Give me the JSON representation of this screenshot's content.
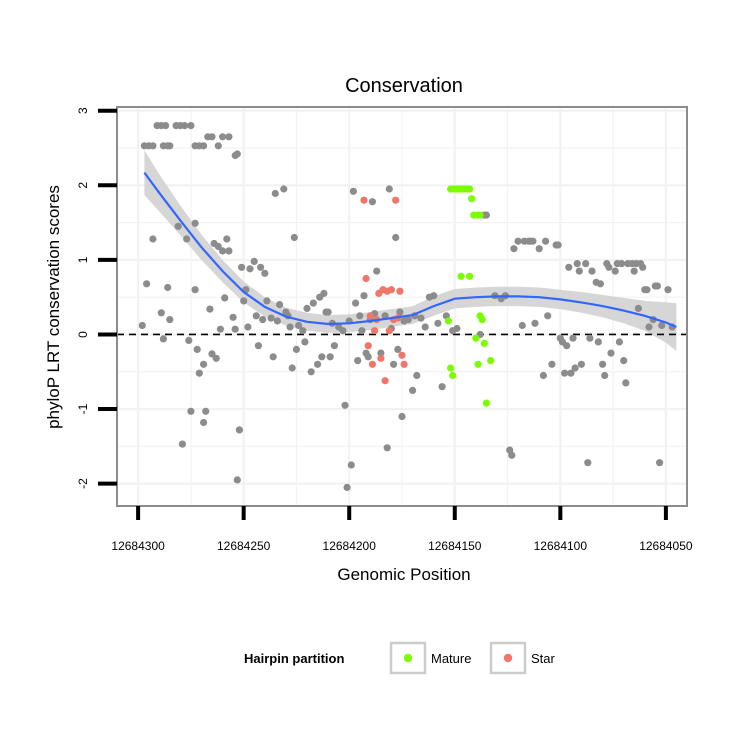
{
  "chart_data": {
    "type": "scatter",
    "title": "Conservation",
    "xlabel": "Genomic Position",
    "ylabel": "phyloP LRT conservation scores",
    "x_reversed": true,
    "xlim": [
      12684310,
      12684040
    ],
    "ylim": [
      -2.3,
      3.05
    ],
    "x_ticks": [
      12684300,
      12684250,
      12684200,
      12684150,
      12684100,
      12684050
    ],
    "x_tick_labels": [
      "12684300",
      "12684250",
      "12684200",
      "12684150",
      "12684100",
      "12684050"
    ],
    "y_ticks": [
      -2,
      -1,
      0,
      1,
      2,
      3
    ],
    "y_tick_labels": [
      "-2",
      "-1",
      "0",
      "1",
      "2",
      "3"
    ],
    "reference_line": {
      "y": 0,
      "style": "dashed"
    },
    "colors": {
      "other": "#8c8c8c",
      "Mature": "#7cfc00",
      "Star": "#f0766a",
      "smooth": "#3366ff",
      "ribbon": "#d6d6d6",
      "grid": "#f2f2f2",
      "panel_border": "#8c8c8c"
    },
    "legend": {
      "title": "Hairpin partition",
      "position": "bottom",
      "entries": [
        {
          "label": "Mature",
          "color": "#7cfc00"
        },
        {
          "label": "Star",
          "color": "#f0766a"
        }
      ]
    },
    "series": [
      {
        "name": "Other",
        "points": [
          [
            12684297,
            2.53
          ],
          [
            12684295,
            2.53
          ],
          [
            12684293,
            2.53
          ],
          [
            12684291,
            2.8
          ],
          [
            12684289,
            2.8
          ],
          [
            12684288,
            2.53
          ],
          [
            12684287,
            2.8
          ],
          [
            12684286,
            2.53
          ],
          [
            12684285,
            2.53
          ],
          [
            12684282,
            2.8
          ],
          [
            12684280,
            2.8
          ],
          [
            12684278,
            2.8
          ],
          [
            12684275,
            2.8
          ],
          [
            12684273,
            2.53
          ],
          [
            12684271,
            2.53
          ],
          [
            12684269,
            2.53
          ],
          [
            12684267,
            2.65
          ],
          [
            12684265,
            2.65
          ],
          [
            12684262,
            2.53
          ],
          [
            12684260,
            2.65
          ],
          [
            12684257,
            2.65
          ],
          [
            12684254,
            2.4
          ],
          [
            12684253,
            2.42
          ],
          [
            12684298,
            0.12
          ],
          [
            12684296,
            0.68
          ],
          [
            12684293,
            1.28
          ],
          [
            12684289,
            0.29
          ],
          [
            12684288,
            -0.06
          ],
          [
            12684286,
            0.63
          ],
          [
            12684285,
            0.2
          ],
          [
            12684281,
            1.45
          ],
          [
            12684279,
            -1.47
          ],
          [
            12684277,
            1.28
          ],
          [
            12684276,
            -0.08
          ],
          [
            12684275,
            -1.03
          ],
          [
            12684273,
            1.49
          ],
          [
            12684273,
            0.6
          ],
          [
            12684272,
            -0.2
          ],
          [
            12684271,
            -0.52
          ],
          [
            12684269,
            -0.4
          ],
          [
            12684269,
            -1.18
          ],
          [
            12684268,
            -1.03
          ],
          [
            12684266,
            0.34
          ],
          [
            12684265,
            -0.26
          ],
          [
            12684264,
            1.22
          ],
          [
            12684263,
            -0.32
          ],
          [
            12684262,
            1.18
          ],
          [
            12684261,
            0.07
          ],
          [
            12684260,
            1.12
          ],
          [
            12684259,
            0.49
          ],
          [
            12684258,
            1.28
          ],
          [
            12684257,
            1.12
          ],
          [
            12684255,
            0.23
          ],
          [
            12684254,
            0.07
          ],
          [
            12684253,
            -1.95
          ],
          [
            12684252,
            -1.28
          ],
          [
            12684251,
            0.9
          ],
          [
            12684250,
            0.45
          ],
          [
            12684249,
            0.6
          ],
          [
            12684248,
            0.1
          ],
          [
            12684247,
            0.88
          ],
          [
            12684245,
            0.98
          ],
          [
            12684244,
            0.25
          ],
          [
            12684243,
            -0.15
          ],
          [
            12684242,
            0.9
          ],
          [
            12684241,
            0.2
          ],
          [
            12684240,
            0.82
          ],
          [
            12684239,
            0.45
          ],
          [
            12684237,
            0.22
          ],
          [
            12684236,
            -0.3
          ],
          [
            12684235,
            1.89
          ],
          [
            12684234,
            0.18
          ],
          [
            12684233,
            0.4
          ],
          [
            12684231,
            1.95
          ],
          [
            12684230,
            0.3
          ],
          [
            12684229,
            0.25
          ],
          [
            12684228,
            0.1
          ],
          [
            12684227,
            -0.45
          ],
          [
            12684226,
            1.3
          ],
          [
            12684225,
            -0.2
          ],
          [
            12684224,
            0.12
          ],
          [
            12684222,
            0.05
          ],
          [
            12684221,
            -0.1
          ],
          [
            12684220,
            0.35
          ],
          [
            12684218,
            -0.5
          ],
          [
            12684217,
            0.42
          ],
          [
            12684215,
            -0.4
          ],
          [
            12684214,
            0.5
          ],
          [
            12684213,
            -0.3
          ],
          [
            12684212,
            0.55
          ],
          [
            12684211,
            0.3
          ],
          [
            12684210,
            0.3
          ],
          [
            12684209,
            -0.3
          ],
          [
            12684208,
            0.15
          ],
          [
            12684207,
            -0.15
          ],
          [
            12684205,
            0.1
          ],
          [
            12684203,
            0.05
          ],
          [
            12684202,
            -0.95
          ],
          [
            12684201,
            -2.05
          ],
          [
            12684200,
            0.18
          ],
          [
            12684199,
            -1.75
          ],
          [
            12684198,
            1.92
          ],
          [
            12684197,
            0.42
          ],
          [
            12684196,
            -0.35
          ],
          [
            12684195,
            0.25
          ],
          [
            12684194,
            0.05
          ],
          [
            12684193,
            0.52
          ],
          [
            12684192,
            -0.25
          ],
          [
            12684191,
            -0.3
          ],
          [
            12684190,
            0.2
          ],
          [
            12684189,
            1.78
          ],
          [
            12684188,
            0.28
          ],
          [
            12684187,
            0.85
          ],
          [
            12684185,
            -0.25
          ],
          [
            12684183,
            0.25
          ],
          [
            12684182,
            -1.52
          ],
          [
            12684181,
            1.95
          ],
          [
            12684180,
            0.08
          ],
          [
            12684179,
            -0.4
          ],
          [
            12684178,
            1.3
          ],
          [
            12684177,
            -0.2
          ],
          [
            12684176,
            0.3
          ],
          [
            12684175,
            -1.1
          ],
          [
            12684174,
            0.18
          ],
          [
            12684172,
            0.2
          ],
          [
            12684170,
            -0.75
          ],
          [
            12684169,
            0.25
          ],
          [
            12684168,
            -0.55
          ],
          [
            12684166,
            0.22
          ],
          [
            12684164,
            0.1
          ],
          [
            12684162,
            0.5
          ],
          [
            12684160,
            0.52
          ],
          [
            12684158,
            0.15
          ],
          [
            12684156,
            -0.7
          ],
          [
            12684154,
            0.25
          ],
          [
            12684151,
            0.05
          ],
          [
            12684149,
            0.08
          ],
          [
            12684138,
            0.0
          ],
          [
            12684136,
            1.6
          ],
          [
            12684135,
            1.6
          ],
          [
            12684131,
            0.52
          ],
          [
            12684128,
            0.48
          ],
          [
            12684126,
            0.52
          ],
          [
            12684124,
            -1.55
          ],
          [
            12684123,
            -1.62
          ],
          [
            12684122,
            1.15
          ],
          [
            12684120,
            1.25
          ],
          [
            12684118,
            0.12
          ],
          [
            12684117,
            1.25
          ],
          [
            12684115,
            1.25
          ],
          [
            12684114,
            1.25
          ],
          [
            12684113,
            1.25
          ],
          [
            12684112,
            0.15
          ],
          [
            12684110,
            1.15
          ],
          [
            12684108,
            -0.55
          ],
          [
            12684107,
            1.25
          ],
          [
            12684106,
            0.25
          ],
          [
            12684104,
            -0.4
          ],
          [
            12684102,
            1.2
          ],
          [
            12684101,
            1.2
          ],
          [
            12684100,
            -0.05
          ],
          [
            12684099,
            -0.1
          ],
          [
            12684098,
            -0.52
          ],
          [
            12684097,
            -0.15
          ],
          [
            12684096,
            0.9
          ],
          [
            12684095,
            -0.52
          ],
          [
            12684094,
            -0.05
          ],
          [
            12684093,
            -0.45
          ],
          [
            12684092,
            0.95
          ],
          [
            12684091,
            0.85
          ],
          [
            12684090,
            -0.4
          ],
          [
            12684088,
            0.95
          ],
          [
            12684087,
            -1.72
          ],
          [
            12684086,
            -0.05
          ],
          [
            12684085,
            0.85
          ],
          [
            12684083,
            0.7
          ],
          [
            12684082,
            -0.1
          ],
          [
            12684081,
            0.68
          ],
          [
            12684080,
            -0.4
          ],
          [
            12684079,
            -0.55
          ],
          [
            12684078,
            0.95
          ],
          [
            12684077,
            0.9
          ],
          [
            12684076,
            -0.25
          ],
          [
            12684074,
            0.85
          ],
          [
            12684073,
            0.95
          ],
          [
            12684072,
            -0.1
          ],
          [
            12684071,
            0.95
          ],
          [
            12684070,
            -0.35
          ],
          [
            12684069,
            -0.65
          ],
          [
            12684068,
            0.95
          ],
          [
            12684066,
            0.95
          ],
          [
            12684065,
            0.85
          ],
          [
            12684064,
            0.95
          ],
          [
            12684063,
            0.35
          ],
          [
            12684062,
            0.95
          ],
          [
            12684061,
            0.9
          ],
          [
            12684060,
            0.6
          ],
          [
            12684059,
            0.6
          ],
          [
            12684058,
            0.1
          ],
          [
            12684056,
            0.2
          ],
          [
            12684055,
            0.65
          ],
          [
            12684054,
            0.65
          ],
          [
            12684053,
            -1.72
          ],
          [
            12684052,
            0.12
          ],
          [
            12684049,
            0.6
          ],
          [
            12684047,
            0.1
          ]
        ]
      },
      {
        "name": "Star",
        "points": [
          [
            12684193,
            1.8
          ],
          [
            12684192,
            0.75
          ],
          [
            12684191,
            -0.15
          ],
          [
            12684190,
            0.25
          ],
          [
            12684189,
            -0.4
          ],
          [
            12684188,
            0.05
          ],
          [
            12684187,
            0.2
          ],
          [
            12684186,
            0.55
          ],
          [
            12684185,
            -0.32
          ],
          [
            12684184,
            0.6
          ],
          [
            12684183,
            -0.62
          ],
          [
            12684182,
            0.58
          ],
          [
            12684181,
            0.05
          ],
          [
            12684180,
            0.6
          ],
          [
            12684179,
            0.2
          ],
          [
            12684178,
            1.8
          ],
          [
            12684177,
            0.22
          ],
          [
            12684176,
            0.58
          ],
          [
            12684175,
            -0.28
          ],
          [
            12684174,
            -0.4
          ]
        ]
      },
      {
        "name": "Mature",
        "points": [
          [
            12684152,
            1.95
          ],
          [
            12684151,
            1.95
          ],
          [
            12684150,
            1.95
          ],
          [
            12684149,
            1.95
          ],
          [
            12684148,
            1.95
          ],
          [
            12684147,
            1.95
          ],
          [
            12684146,
            1.95
          ],
          [
            12684145,
            1.95
          ],
          [
            12684144,
            1.95
          ],
          [
            12684143,
            1.95
          ],
          [
            12684142,
            1.82
          ],
          [
            12684141,
            1.6
          ],
          [
            12684139,
            1.6
          ],
          [
            12684138,
            1.6
          ],
          [
            12684153,
            0.18
          ],
          [
            12684152,
            -0.45
          ],
          [
            12684151,
            -0.55
          ],
          [
            12684147,
            0.78
          ],
          [
            12684143,
            0.78
          ],
          [
            12684140,
            -0.05
          ],
          [
            12684139,
            -0.4
          ],
          [
            12684138,
            0.25
          ],
          [
            12684137,
            0.2
          ],
          [
            12684136,
            -0.12
          ],
          [
            12684135,
            -0.92
          ],
          [
            12684133,
            -0.35
          ]
        ]
      }
    ],
    "smooth": {
      "method": "loess",
      "x": [
        12684297,
        12684290,
        12684280,
        12684270,
        12684260,
        12684250,
        12684240,
        12684230,
        12684220,
        12684210,
        12684200,
        12684190,
        12684180,
        12684170,
        12684160,
        12684150,
        12684140,
        12684130,
        12684120,
        12684110,
        12684100,
        12684090,
        12684080,
        12684070,
        12684060,
        12684050,
        12684045
      ],
      "y": [
        2.17,
        1.9,
        1.53,
        1.17,
        0.85,
        0.57,
        0.37,
        0.24,
        0.17,
        0.14,
        0.15,
        0.18,
        0.22,
        0.26,
        0.38,
        0.48,
        0.5,
        0.51,
        0.51,
        0.5,
        0.47,
        0.43,
        0.38,
        0.32,
        0.25,
        0.16,
        0.1
      ],
      "se": [
        0.3,
        0.25,
        0.2,
        0.17,
        0.15,
        0.14,
        0.13,
        0.12,
        0.12,
        0.12,
        0.12,
        0.12,
        0.12,
        0.12,
        0.13,
        0.13,
        0.13,
        0.13,
        0.13,
        0.13,
        0.13,
        0.14,
        0.15,
        0.17,
        0.2,
        0.27,
        0.32
      ]
    }
  }
}
